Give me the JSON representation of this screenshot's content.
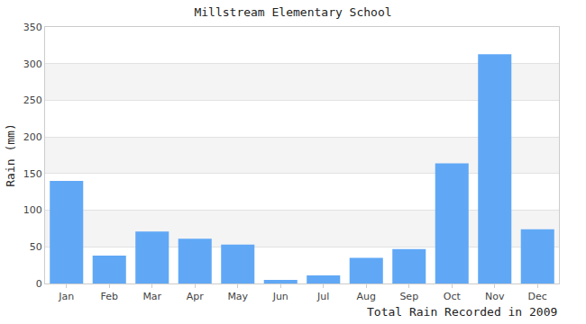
{
  "chart_data": {
    "type": "bar",
    "title": "Millstream Elementary School",
    "xlabel": "Total Rain Recorded in 2009",
    "ylabel": "Rain (mm)",
    "categories": [
      "Jan",
      "Feb",
      "Mar",
      "Apr",
      "May",
      "Jun",
      "Jul",
      "Aug",
      "Sep",
      "Oct",
      "Nov",
      "Dec"
    ],
    "values": [
      140,
      38,
      71,
      61,
      53,
      5,
      11,
      35,
      47,
      164,
      313,
      74
    ],
    "color": "#60a8f6",
    "ylim": [
      0,
      350
    ],
    "yticks": [
      0,
      50,
      100,
      150,
      200,
      250,
      300,
      350
    ],
    "grid": true
  }
}
